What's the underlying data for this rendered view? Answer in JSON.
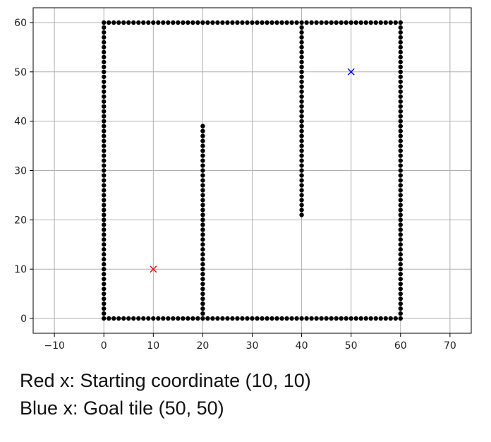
{
  "chart_data": {
    "type": "scatter",
    "title": "",
    "xlabel": "",
    "ylabel": "",
    "xlim": [
      -14.3,
      74.3
    ],
    "ylim": [
      -3,
      63
    ],
    "x_ticks": [
      -10,
      0,
      10,
      20,
      30,
      40,
      50,
      60,
      70
    ],
    "y_ticks": [
      0,
      10,
      20,
      30,
      40,
      50,
      60
    ],
    "grid": true,
    "series": [
      {
        "marker": "dot",
        "color": "#000000",
        "segments": [
          {
            "from": [
              0,
              0
            ],
            "to": [
              60,
              0
            ],
            "step": 1
          },
          {
            "from": [
              0,
              60
            ],
            "to": [
              60,
              60
            ],
            "step": 1
          },
          {
            "from": [
              0,
              0
            ],
            "to": [
              0,
              60
            ],
            "step": 1
          },
          {
            "from": [
              60,
              0
            ],
            "to": [
              60,
              60
            ],
            "step": 1
          },
          {
            "from": [
              20,
              0
            ],
            "to": [
              20,
              39
            ],
            "step": 1
          },
          {
            "from": [
              40,
              21
            ],
            "to": [
              40,
              60
            ],
            "step": 1
          }
        ]
      },
      {
        "marker": "x",
        "color": "#ff0000",
        "points": [
          [
            10,
            10
          ]
        ]
      },
      {
        "marker": "x",
        "color": "#0000ff",
        "points": [
          [
            50,
            50
          ]
        ]
      }
    ]
  },
  "caption": {
    "line1": "Red x: Starting coordinate (10, 10)",
    "line2": "Blue x: Goal tile (50, 50)"
  }
}
